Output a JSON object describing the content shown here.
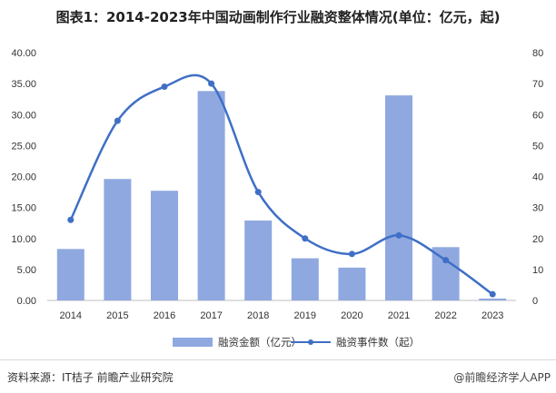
{
  "title": "图表1：2014-2023年中国动画制作行业融资整体情况(单位：亿元，起)",
  "colors": {
    "bar": "#8fa8e0",
    "line": "#3f6fc6"
  },
  "chart_data": {
    "type": "bar",
    "categories": [
      "2014",
      "2015",
      "2016",
      "2017",
      "2018",
      "2019",
      "2020",
      "2021",
      "2022",
      "2023"
    ],
    "series": [
      {
        "name": "融资金额（亿元）",
        "type": "bar",
        "axis": "left",
        "values": [
          8.3,
          19.6,
          17.7,
          33.8,
          12.9,
          6.8,
          5.3,
          33.1,
          8.6,
          0.3
        ]
      },
      {
        "name": "融资事件数（起）",
        "type": "line",
        "axis": "right",
        "smooth": true,
        "values": [
          26,
          58,
          69,
          70,
          35,
          20,
          15,
          21,
          13,
          2
        ]
      }
    ],
    "ylim_left": [
      0,
      40
    ],
    "ylim_right": [
      0,
      80
    ],
    "yticks_left": [
      "0.00",
      "5.00",
      "10.00",
      "15.00",
      "20.00",
      "25.00",
      "30.00",
      "35.00",
      "40.00"
    ],
    "yticks_right": [
      "0",
      "10",
      "20",
      "30",
      "40",
      "50",
      "60",
      "70",
      "80"
    ],
    "legend_position": "bottom"
  },
  "footer": {
    "source": "资料来源：IT桔子 前瞻产业研究院",
    "brand": "@前瞻经济学人APP"
  }
}
